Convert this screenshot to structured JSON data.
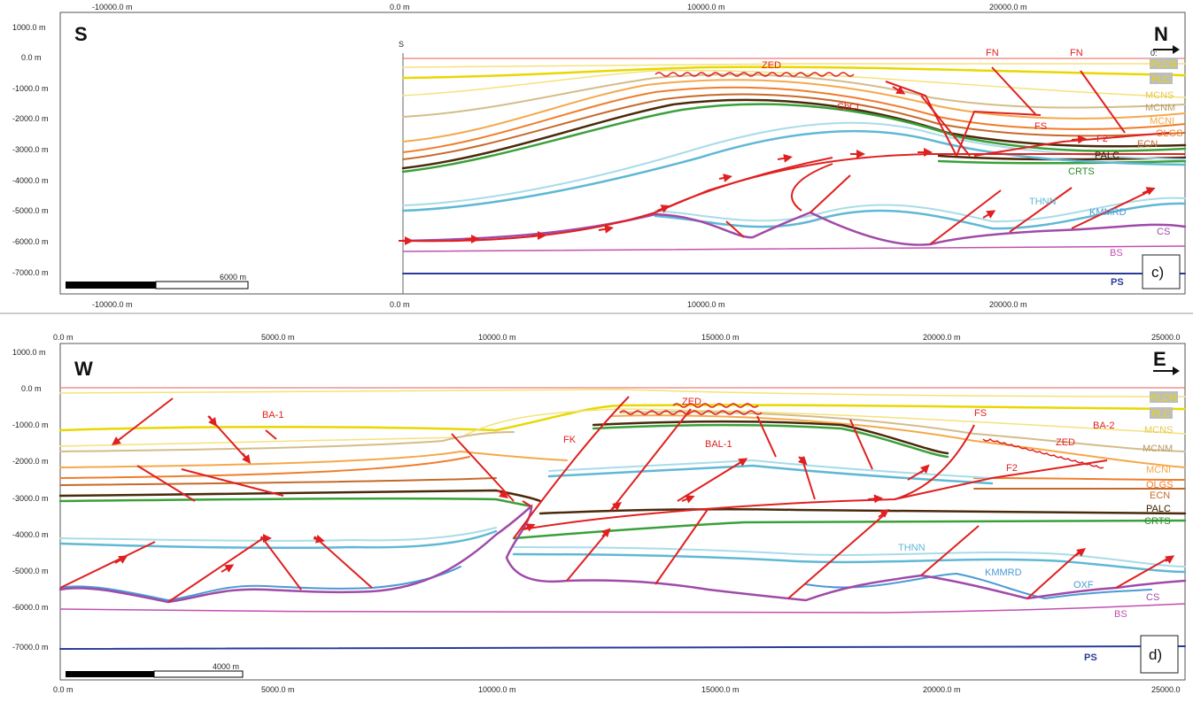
{
  "panel_c": {
    "x_ticks": [
      "-10000.0 m",
      "0.0 m",
      "10000.0 m",
      "20000.0 m"
    ],
    "y_ticks": [
      "1000.0 m",
      "0.0 m",
      "-1000.0 m",
      "-2000.0 m",
      "-3000.0 m",
      "-4000.0 m",
      "-5000.0 m",
      "-6000.0 m",
      "-7000.0 m"
    ],
    "dir_left": "S",
    "dir_right": "N",
    "section_mark": "S",
    "top_right_mark": "0:",
    "scale_label": "6000 m",
    "panel_label": "c)",
    "fault_labels": {
      "zed": "ZED",
      "cbct": "CbCt",
      "fn1": "FN",
      "fn2": "FN",
      "fs": "FS",
      "f2": "F2"
    },
    "horizons": {
      "plcn": "PLCN",
      "plc": "PLC",
      "mcns": "MCNS",
      "mcnm": "MCNM",
      "mcni": "MCNI",
      "olgs": "OLGS",
      "ecn": "ECN",
      "palc": "PALC",
      "crts": "CRTS",
      "thnn": "THNN",
      "kmmrd": "KMMRD",
      "cs": "CS",
      "bs": "BS",
      "ps": "PS"
    }
  },
  "panel_d": {
    "x_ticks": [
      "0.0 m",
      "5000.0 m",
      "10000.0 m",
      "15000.0 m",
      "20000.0 m",
      "25000.0"
    ],
    "y_ticks": [
      "1000.0 m",
      "0.0 m",
      "-1000.0 m",
      "-2000.0 m",
      "-3000.0 m",
      "-4000.0 m",
      "-5000.0 m",
      "-6000.0 m",
      "-7000.0 m"
    ],
    "dir_left": "W",
    "dir_right": "E",
    "scale_label": "4000 m",
    "panel_label": "d)",
    "fault_labels": {
      "ba1": "BA-1",
      "ba2": "BA-2",
      "bal1": "BAL-1",
      "zed1": "ZED",
      "zed2": "ZED",
      "fk": "FK",
      "fs": "FS",
      "f2": "F2"
    },
    "horizons": {
      "plcn": "PLCN",
      "plc": "PLC",
      "mcns": "MCNS",
      "mcnm": "MCNM",
      "mcni": "MCNI",
      "olgs": "OLGS",
      "ecn": "ECN",
      "palc": "PALC",
      "crts": "CRTS",
      "thnn": "THNN",
      "kmmrd": "KMMRD",
      "oxf": "OXF",
      "cs": "CS",
      "bs": "BS",
      "ps": "PS"
    }
  },
  "colors": {
    "fault": "#e02020",
    "plc": "#e8d800",
    "mcns": "#f4e27a",
    "mcnm": "#d4bc8a",
    "mcni": "#f5a84a",
    "olgs": "#f07d2a",
    "ecn": "#c56a2a",
    "palc": "#4a2a0a",
    "crts": "#3aa03a",
    "thnn_light": "#a8dce8",
    "thnn": "#5fb8d4",
    "kmmrd": "#4a9ad4",
    "cs": "#a04aa8",
    "bs": "#c050b0",
    "ps": "#2a3a9a"
  }
}
